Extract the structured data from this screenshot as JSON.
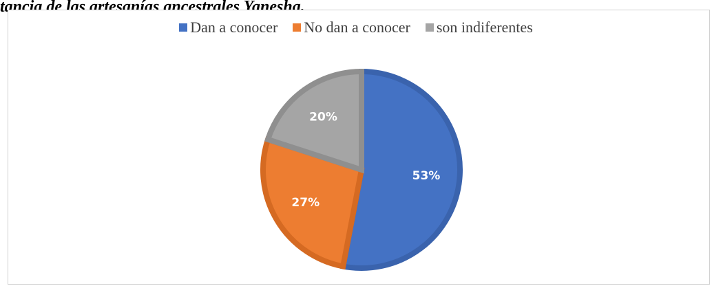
{
  "caption": "tancia de las artesanías ancestrales Yanesha.",
  "chart_data": {
    "type": "pie",
    "categories": [
      "Dan a conocer",
      "No dan a conocer",
      "son indiferentes"
    ],
    "values": [
      53,
      27,
      20
    ],
    "labels": [
      "53%",
      "27%",
      "20%"
    ],
    "colors": [
      "#4472c4",
      "#ed7d31",
      "#a5a5a5"
    ],
    "border_colors": [
      "#3a63ad",
      "#d56a22",
      "#8f8f8f"
    ],
    "legend": "top"
  }
}
